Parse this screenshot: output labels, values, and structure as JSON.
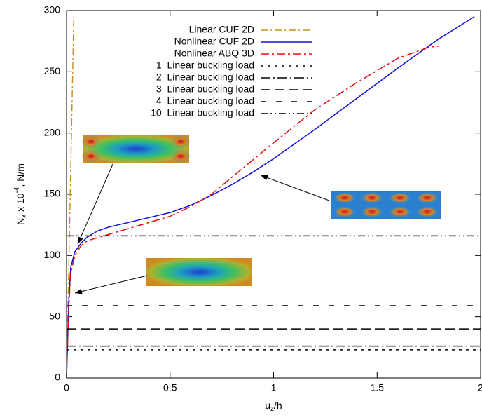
{
  "chart_data": {
    "type": "line",
    "xlabel": [
      "u",
      "z",
      "/h"
    ],
    "ylabel": [
      "N",
      "x",
      " x 10",
      "-4",
      ", N/m"
    ],
    "xlim": [
      0,
      2
    ],
    "xticks": [
      0,
      0.5,
      1,
      1.5,
      2
    ],
    "ylim": [
      0,
      300
    ],
    "yticks": [
      0,
      50,
      100,
      150,
      200,
      250,
      300
    ],
    "legend": "top-center",
    "series": [
      {
        "name": "Linear CUF 2D",
        "color": "#c8901a",
        "dash": "10,4,2,4",
        "x": [
          0,
          0.035
        ],
        "values": [
          0,
          295
        ]
      },
      {
        "name": "Nonlinear CUF 2D",
        "color": "#1010d8",
        "dash": "none",
        "x": [
          0,
          0.01,
          0.02,
          0.04,
          0.07,
          0.1,
          0.15,
          0.2,
          0.3,
          0.4,
          0.5,
          0.6,
          0.7,
          0.8,
          0.9,
          1.0,
          1.2,
          1.4,
          1.6,
          1.8,
          1.97
        ],
        "values": [
          0,
          60,
          90,
          103,
          110,
          115,
          120,
          123,
          127,
          131,
          135,
          141,
          149,
          158,
          168,
          179,
          203,
          228,
          253,
          277,
          295
        ]
      },
      {
        "name": "Nonlinear ABQ 3D",
        "color": "#e01010",
        "dash": "12,4,3,4",
        "x": [
          0,
          0.01,
          0.02,
          0.04,
          0.07,
          0.1,
          0.2,
          0.3,
          0.4,
          0.5,
          0.6,
          0.7,
          0.8,
          0.9,
          1.0,
          1.2,
          1.4,
          1.6,
          1.75,
          1.8
        ],
        "values": [
          0,
          55,
          85,
          100,
          108,
          112,
          117,
          122,
          127,
          132,
          140,
          150,
          164,
          178,
          192,
          219,
          241,
          261,
          270,
          271
        ]
      },
      {
        "name": "1  Linear buckling load",
        "color": "#000000",
        "dash": "4,6",
        "x": [
          0,
          2
        ],
        "values": [
          23,
          23
        ]
      },
      {
        "name": "2  Linear buckling load",
        "color": "#000000",
        "dash": "14,4,2,4",
        "x": [
          0,
          2
        ],
        "values": [
          26,
          26
        ]
      },
      {
        "name": "3  Linear buckling load",
        "color": "#000000",
        "dash": "14,6",
        "x": [
          0,
          2
        ],
        "values": [
          40,
          40
        ]
      },
      {
        "name": "4  Linear buckling load",
        "color": "#000000",
        "dash": "8,14",
        "x": [
          0,
          2
        ],
        "values": [
          59,
          59
        ]
      },
      {
        "name": "10  Linear buckling load",
        "color": "#000000",
        "dash": "10,4,2,4,2,4",
        "x": [
          0,
          2
        ],
        "values": [
          116,
          116
        ]
      }
    ]
  }
}
